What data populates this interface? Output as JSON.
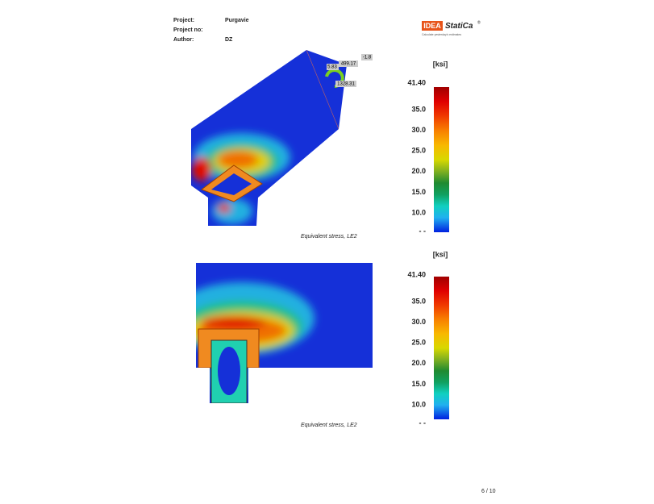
{
  "header": {
    "project_label": "Project:",
    "project": "Purgavie",
    "project_no_label": "Project no:",
    "project_no": "",
    "author_label": "Author:",
    "author": "DZ"
  },
  "logo": {
    "brand": "IDEA",
    "product": "StatiCa",
    "mark": "®",
    "tagline": "Calculate yesterday's estimates"
  },
  "figures": [
    {
      "unit": "[ksi]",
      "scale": [
        "41.40",
        "35.0",
        "30.0",
        "25.0",
        "20.0",
        "15.0",
        "10.0",
        "- -"
      ],
      "caption": "Equivalent stress, LE2",
      "annotations": [
        "-1.8",
        "499.17",
        "5.83",
        "1328.31"
      ]
    },
    {
      "unit": "[ksi]",
      "scale": [
        "41.40",
        "35.0",
        "30.0",
        "25.0",
        "20.0",
        "15.0",
        "10.0",
        "- -"
      ],
      "caption": "Equivalent stress, LE2"
    }
  ],
  "footer": {
    "page": "6 / 10"
  }
}
